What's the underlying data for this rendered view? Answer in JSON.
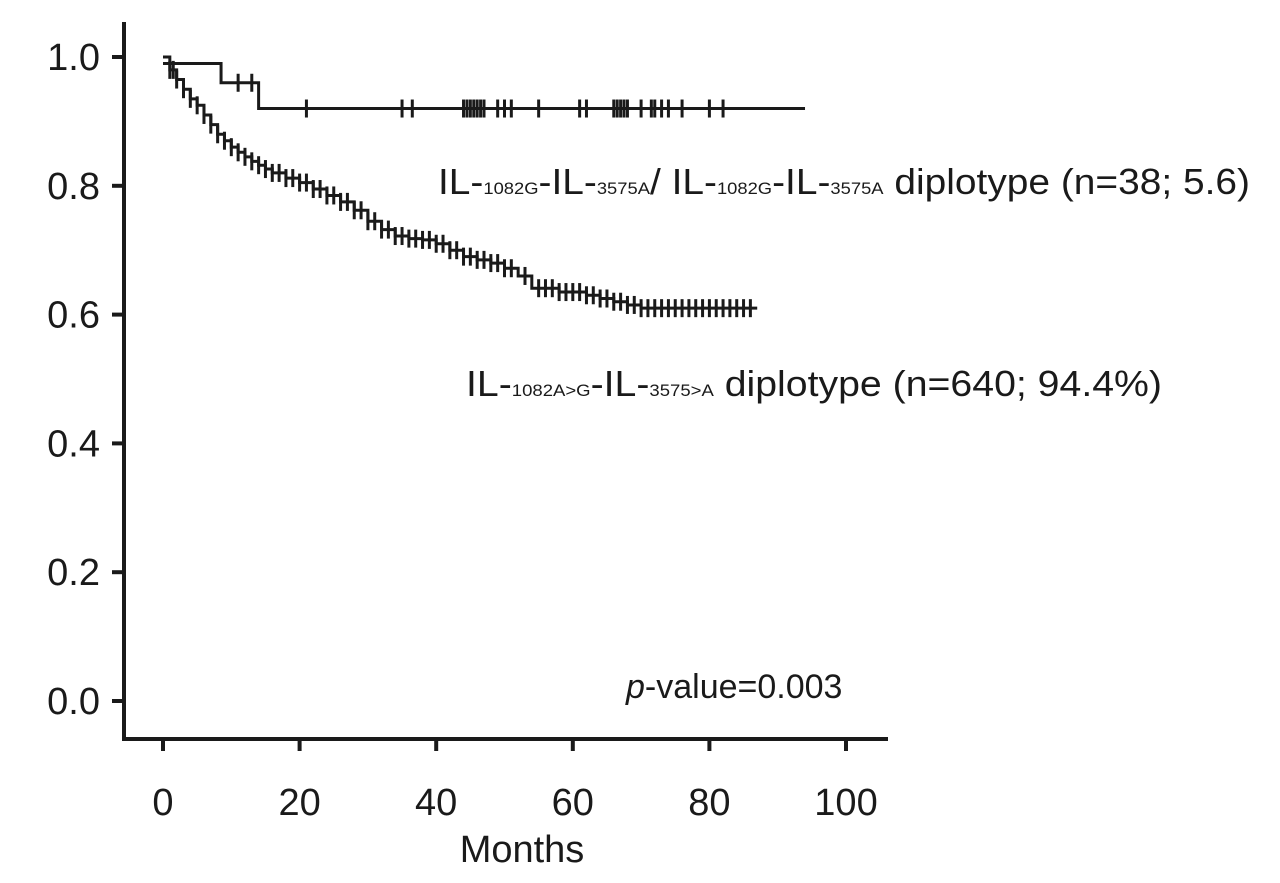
{
  "chart_data": {
    "type": "line",
    "title": "",
    "xlabel": "Months",
    "ylabel": "",
    "xlim": [
      0,
      100
    ],
    "ylim": [
      0.0,
      1.0
    ],
    "x_ticks": [
      "0",
      "20",
      "40",
      "60",
      "80",
      "100"
    ],
    "y_ticks": [
      "0.0",
      "0.2",
      "0.4",
      "0.6",
      "0.8",
      "1.0"
    ],
    "grid": false,
    "legend": "none",
    "series": [
      {
        "name": "",
        "steps": [
          [
            0,
            0.99
          ],
          [
            8.5,
            0.96
          ],
          [
            14,
            0.92
          ],
          [
            94,
            0.92
          ]
        ],
        "censor_x": [
          11,
          13,
          21,
          35,
          36.5,
          44,
          44.5,
          45,
          45.5,
          46,
          46.5,
          47,
          49,
          50,
          51,
          55,
          61,
          62,
          66,
          66.5,
          67,
          67.5,
          68,
          70,
          71.5,
          72,
          73,
          74,
          76,
          80,
          82
        ]
      },
      {
        "name": "",
        "steps": [
          [
            0,
            1.0
          ],
          [
            1,
            0.98
          ],
          [
            2,
            0.965
          ],
          [
            3,
            0.95
          ],
          [
            4,
            0.935
          ],
          [
            5,
            0.925
          ],
          [
            6,
            0.91
          ],
          [
            7,
            0.895
          ],
          [
            8,
            0.88
          ],
          [
            9,
            0.87
          ],
          [
            10,
            0.86
          ],
          [
            11,
            0.852
          ],
          [
            12,
            0.845
          ],
          [
            13,
            0.838
          ],
          [
            14,
            0.832
          ],
          [
            15,
            0.826
          ],
          [
            16,
            0.82
          ],
          [
            18,
            0.812
          ],
          [
            20,
            0.805
          ],
          [
            22,
            0.795
          ],
          [
            24,
            0.785
          ],
          [
            26,
            0.775
          ],
          [
            28,
            0.762
          ],
          [
            30,
            0.745
          ],
          [
            32,
            0.732
          ],
          [
            34,
            0.722
          ],
          [
            36,
            0.718
          ],
          [
            38,
            0.716
          ],
          [
            40,
            0.71
          ],
          [
            42,
            0.7
          ],
          [
            44,
            0.69
          ],
          [
            46,
            0.685
          ],
          [
            48,
            0.68
          ],
          [
            50,
            0.672
          ],
          [
            52,
            0.66
          ],
          [
            54,
            0.641
          ],
          [
            58,
            0.635
          ],
          [
            62,
            0.63
          ],
          [
            64,
            0.625
          ],
          [
            66,
            0.62
          ],
          [
            68,
            0.615
          ],
          [
            70,
            0.61
          ],
          [
            87,
            0.61
          ]
        ],
        "censor_x": [
          1,
          1.5,
          2,
          3,
          4,
          5,
          6,
          7,
          8,
          9,
          10,
          11,
          12,
          13,
          14,
          15,
          16,
          17,
          18,
          19,
          20,
          21,
          22,
          23,
          24,
          25,
          26,
          27,
          28,
          29,
          30,
          31,
          32,
          33,
          34,
          35,
          36,
          37,
          38,
          39,
          40,
          41,
          42,
          43,
          44,
          45,
          46,
          47,
          48,
          49,
          50,
          51,
          53,
          55,
          56,
          57,
          58,
          59,
          60,
          61,
          62,
          63,
          64,
          65,
          66,
          67,
          68,
          69,
          70,
          71,
          72,
          73,
          74,
          75,
          76,
          77,
          78,
          79,
          80,
          81,
          82,
          83,
          84,
          85,
          86
        ]
      }
    ],
    "annotations": {
      "upper_label": {
        "p1": "IL-",
        "s1": "1082G",
        "p2": "-IL-",
        "s2": "3575A",
        "p3": "/ IL-",
        "s3": "1082G",
        "p4": "-IL-",
        "s4": "3575A",
        "tail": " diplotype (n=38; 5.6)"
      },
      "lower_label": {
        "p1": "IL-",
        "s1": "1082A>G",
        "p2": "-IL-",
        "s2": "3575>A",
        "tail": " diplotype (n=640; 94.4%)"
      },
      "pvalue": {
        "italic": "p",
        "rest": "-value=0.003"
      }
    },
    "colors": {
      "ink": "#1a1a1a",
      "background": "#ffffff"
    }
  }
}
